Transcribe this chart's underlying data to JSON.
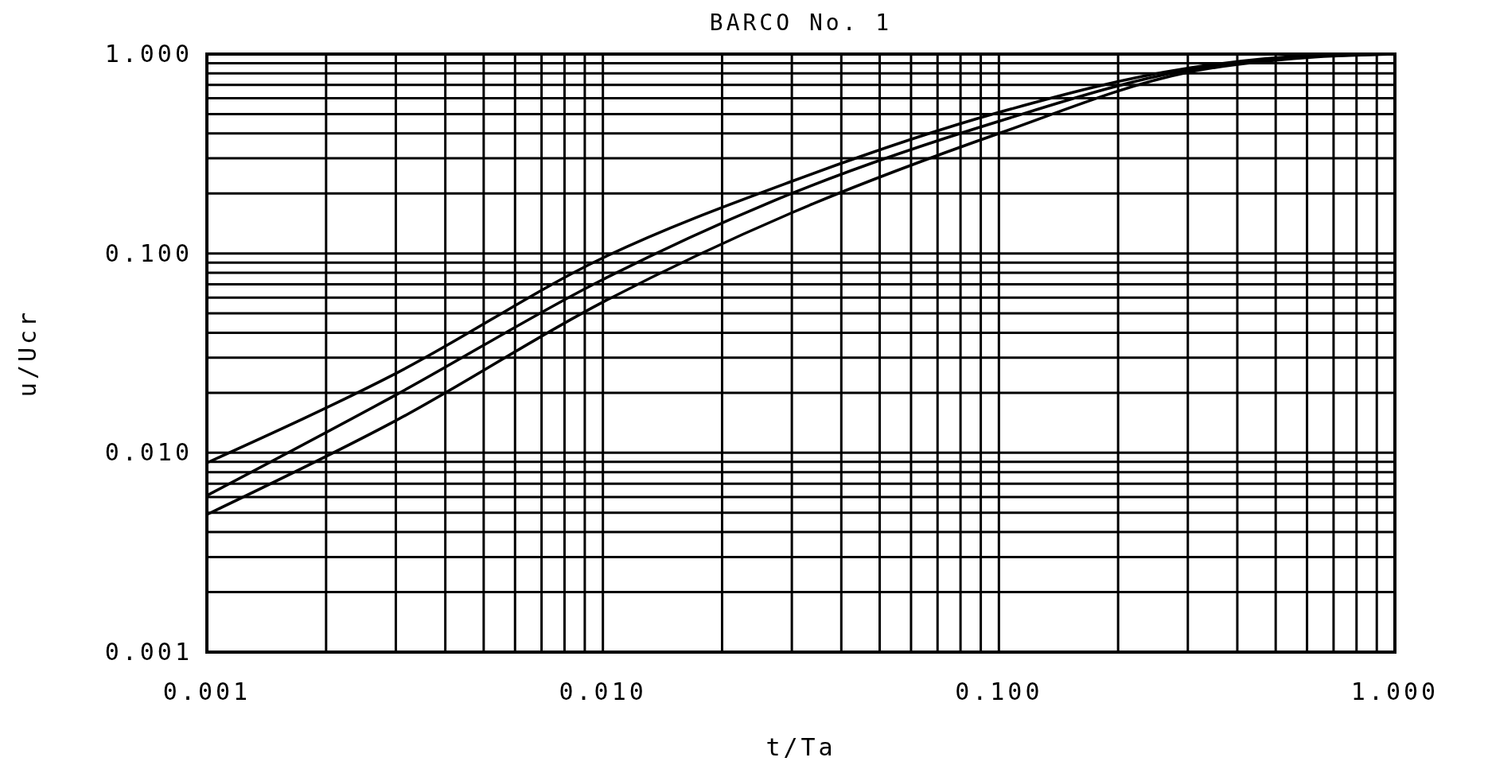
{
  "chart_data": {
    "type": "line",
    "title": "BARCO No. 1",
    "xlabel": "t/Ta",
    "ylabel": "u/Ucr",
    "log": "xy",
    "grid": true,
    "marker": "none",
    "line_style": "solid",
    "xlim": [
      0.001,
      1
    ],
    "ylim": [
      0.001,
      1
    ],
    "xticks": [
      {
        "value": 0.001,
        "label": "0.001"
      },
      {
        "value": 0.002,
        "label": null
      },
      {
        "value": 0.003,
        "label": null
      },
      {
        "value": 0.004,
        "label": null
      },
      {
        "value": 0.005,
        "label": null
      },
      {
        "value": 0.006,
        "label": null
      },
      {
        "value": 0.007,
        "label": null
      },
      {
        "value": 0.008,
        "label": null
      },
      {
        "value": 0.009,
        "label": null
      },
      {
        "value": 0.01,
        "label": "0.010"
      },
      {
        "value": 0.02,
        "label": null
      },
      {
        "value": 0.03,
        "label": null
      },
      {
        "value": 0.04,
        "label": null
      },
      {
        "value": 0.05,
        "label": null
      },
      {
        "value": 0.06,
        "label": null
      },
      {
        "value": 0.07,
        "label": null
      },
      {
        "value": 0.08,
        "label": null
      },
      {
        "value": 0.09,
        "label": null
      },
      {
        "value": 0.1,
        "label": "0.100"
      },
      {
        "value": 0.2,
        "label": null
      },
      {
        "value": 0.3,
        "label": null
      },
      {
        "value": 0.4,
        "label": null
      },
      {
        "value": 0.5,
        "label": null
      },
      {
        "value": 0.6,
        "label": null
      },
      {
        "value": 0.7,
        "label": null
      },
      {
        "value": 0.8,
        "label": null
      },
      {
        "value": 0.9,
        "label": null
      },
      {
        "value": 1,
        "label": "1.000"
      }
    ],
    "yticks": [
      {
        "value": 0.001,
        "label": "0.001"
      },
      {
        "value": 0.002,
        "label": null
      },
      {
        "value": 0.003,
        "label": null
      },
      {
        "value": 0.004,
        "label": null
      },
      {
        "value": 0.005,
        "label": null
      },
      {
        "value": 0.006,
        "label": null
      },
      {
        "value": 0.007,
        "label": null
      },
      {
        "value": 0.008,
        "label": null
      },
      {
        "value": 0.009,
        "label": null
      },
      {
        "value": 0.01,
        "label": "0.010"
      },
      {
        "value": 0.02,
        "label": null
      },
      {
        "value": 0.03,
        "label": null
      },
      {
        "value": 0.04,
        "label": null
      },
      {
        "value": 0.05,
        "label": null
      },
      {
        "value": 0.06,
        "label": null
      },
      {
        "value": 0.07,
        "label": null
      },
      {
        "value": 0.08,
        "label": null
      },
      {
        "value": 0.09,
        "label": null
      },
      {
        "value": 0.1,
        "label": "0.100"
      },
      {
        "value": 0.2,
        "label": null
      },
      {
        "value": 0.3,
        "label": null
      },
      {
        "value": 0.4,
        "label": null
      },
      {
        "value": 0.5,
        "label": null
      },
      {
        "value": 0.6,
        "label": null
      },
      {
        "value": 0.7,
        "label": null
      },
      {
        "value": 0.8,
        "label": null
      },
      {
        "value": 0.9,
        "label": null
      },
      {
        "value": 1,
        "label": "1.000"
      }
    ],
    "series": [
      {
        "color": "#000000",
        "x": [
          0.001,
          0.003,
          0.01,
          0.03,
          0.1,
          0.3,
          0.6,
          1
        ],
        "values": [
          0.0089,
          0.025,
          0.095,
          0.23,
          0.51,
          0.85,
          0.98,
          1
        ]
      },
      {
        "color": "#000000",
        "x": [
          0.001,
          0.003,
          0.01,
          0.03,
          0.1,
          0.3,
          0.6,
          1
        ],
        "values": [
          0.0061,
          0.0195,
          0.074,
          0.2,
          0.46,
          0.83,
          0.97,
          1
        ]
      },
      {
        "color": "#000000",
        "x": [
          0.001,
          0.003,
          0.01,
          0.03,
          0.1,
          0.3,
          0.6,
          1
        ],
        "values": [
          0.0049,
          0.0145,
          0.057,
          0.16,
          0.4,
          0.81,
          0.96,
          1
        ]
      }
    ]
  }
}
